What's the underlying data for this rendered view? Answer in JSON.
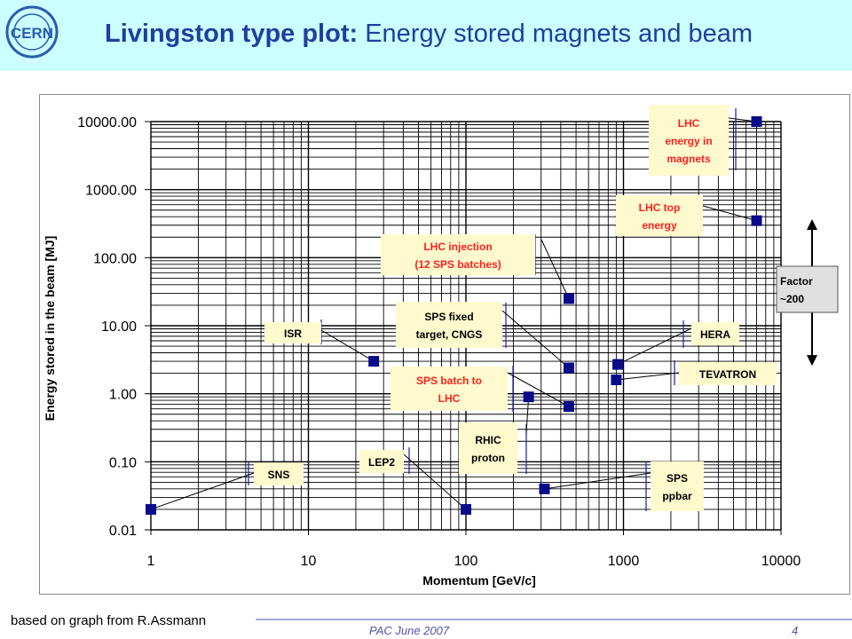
{
  "title": {
    "bold": "Livingston type plot:",
    "rest": " Energy stored magnets and beam"
  },
  "logo": {
    "text": "CERN",
    "icon": "cern-logo-icon"
  },
  "note": "based on graph from R.Assmann",
  "footer": {
    "left": "PAC  June 2007",
    "right": "4"
  },
  "colors": {
    "header_bg": "#ccffff",
    "title": "#1f3f9f",
    "marker": "#0a0a8a",
    "label_bg": "#fffacd",
    "label_text_red": "#ff2020",
    "factor_bg": "#e0e0e0"
  },
  "chart_data": {
    "type": "scatter",
    "xlabel": "Momentum [GeV/c]",
    "ylabel": "Energy stored in the beam [MJ]",
    "xscale": "log",
    "yscale": "log",
    "xlim": [
      1,
      10000
    ],
    "ylim": [
      0.01,
      10000
    ],
    "grid": true,
    "x_ticks": [
      "1",
      "10",
      "100",
      "1000",
      "10000"
    ],
    "y_ticks": [
      "0.01",
      "0.10",
      "1.00",
      "10.00",
      "100.00",
      "1000.00",
      "10000.00"
    ],
    "points": [
      {
        "x": 1,
        "y": 0.02
      },
      {
        "x": 26,
        "y": 3.0
      },
      {
        "x": 100,
        "y": 0.02
      },
      {
        "x": 250,
        "y": 0.9
      },
      {
        "x": 315,
        "y": 0.04
      },
      {
        "x": 450,
        "y": 25
      },
      {
        "x": 450,
        "y": 2.4
      },
      {
        "x": 450,
        "y": 0.65
      },
      {
        "x": 900,
        "y": 1.6
      },
      {
        "x": 920,
        "y": 2.7
      },
      {
        "x": 7000,
        "y": 10000
      },
      {
        "x": 7000,
        "y": 350
      }
    ],
    "annotations": [
      {
        "lines": [
          "LHC",
          "energy  in",
          "magnets"
        ]
      },
      {
        "lines": [
          "LHC top",
          "energy"
        ]
      },
      {
        "lines": [
          "LHC injection",
          "(12 SPS batches)"
        ]
      },
      {
        "lines": [
          "SPS fixed",
          "target, CNGS"
        ]
      },
      {
        "lines": [
          "ISR"
        ]
      },
      {
        "lines": [
          "HERA"
        ]
      },
      {
        "lines": [
          "TEVATRON"
        ]
      },
      {
        "lines": [
          "SPS batch to",
          "LHC"
        ]
      },
      {
        "lines": [
          "RHIC",
          "proton"
        ]
      },
      {
        "lines": [
          "LEP2"
        ]
      },
      {
        "lines": [
          "SNS"
        ]
      },
      {
        "lines": [
          "SPS",
          "ppbar"
        ]
      },
      {
        "lines": [
          "Factor",
          "~200"
        ]
      }
    ]
  }
}
